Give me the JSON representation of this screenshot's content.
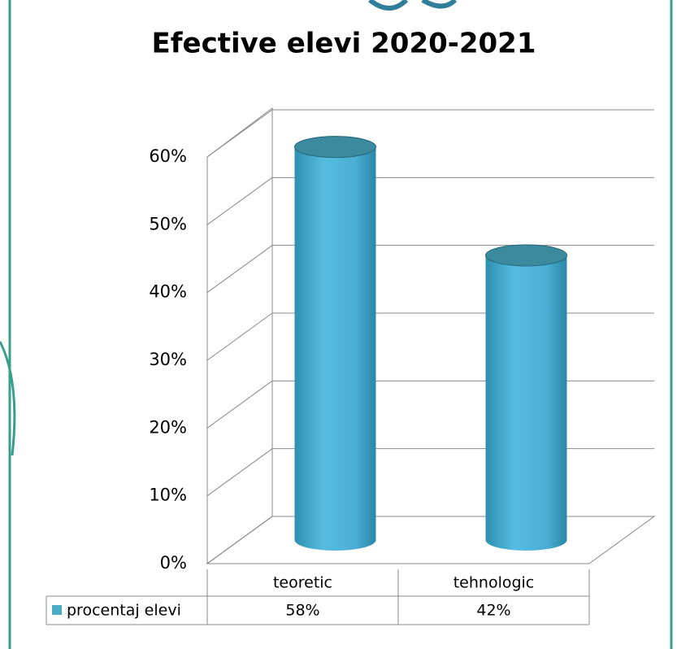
{
  "chart_data": {
    "type": "bar3d",
    "title": "Efective elevi 2020-2021",
    "categories": [
      "teoretic",
      "tehnologic"
    ],
    "series": [
      {
        "name": "procentaj elevi",
        "color": "#4bacc6",
        "values": [
          58,
          42
        ],
        "value_labels": [
          "58%",
          "42%"
        ]
      }
    ],
    "ylim": [
      0,
      60
    ],
    "yticks": [
      {
        "value": 0,
        "label": "0%"
      },
      {
        "value": 10,
        "label": "10%"
      },
      {
        "value": 20,
        "label": "20%"
      },
      {
        "value": 30,
        "label": "30%"
      },
      {
        "value": 40,
        "label": "40%"
      },
      {
        "value": 50,
        "label": "50%"
      },
      {
        "value": 60,
        "label": "60%"
      }
    ],
    "grid": true
  }
}
